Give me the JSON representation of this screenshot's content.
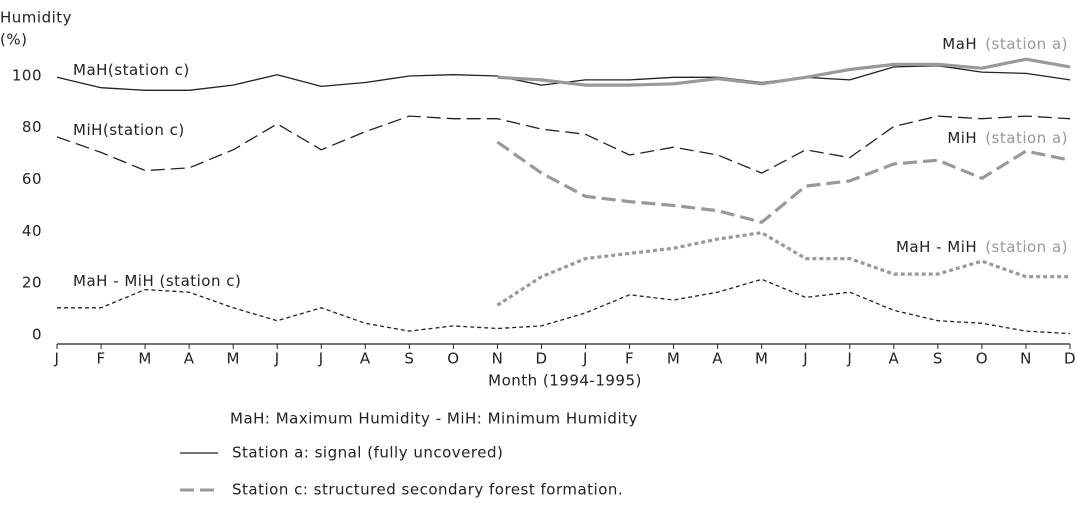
{
  "chart_data": {
    "type": "line",
    "y_label": [
      "Humidity",
      "(%)"
    ],
    "x_label": "Month (1994-1995)",
    "categories": [
      "J",
      "F",
      "M",
      "A",
      "M",
      "J",
      "J",
      "A",
      "S",
      "O",
      "N",
      "D",
      "J",
      "F",
      "M",
      "A",
      "M",
      "J",
      "J",
      "A",
      "S",
      "O",
      "N",
      "D"
    ],
    "ylim": [
      -2,
      110
    ],
    "yticks": [
      0,
      20,
      40,
      60,
      80,
      100
    ],
    "series": [
      {
        "label": "MaH(station c)",
        "color": "#222222",
        "style": "solid",
        "values": [
          101,
          97,
          96,
          96,
          98,
          102,
          97.5,
          99,
          101.5,
          102,
          101.5,
          98,
          100,
          100,
          101,
          101,
          99,
          101,
          100,
          105,
          105.5,
          103,
          102.5,
          100
        ]
      },
      {
        "label": "MiH(station c)",
        "color": "#222222",
        "style": "long-dash",
        "values": [
          78,
          72,
          65,
          66,
          73,
          83,
          73,
          80,
          86,
          85,
          85,
          81,
          79,
          71,
          74,
          71,
          64,
          73,
          70,
          82,
          86,
          85,
          86,
          85
        ]
      },
      {
        "label": "MaH - MiH (station c)",
        "color": "#222222",
        "style": "short-dash",
        "values": [
          12,
          12,
          19,
          18,
          12,
          7,
          12,
          6,
          3,
          5,
          4,
          5,
          10,
          17,
          15,
          18,
          23,
          16,
          18,
          11,
          7,
          6,
          3,
          2
        ]
      },
      {
        "label": "MaH",
        "label_note": "(station a)",
        "color": "#999999",
        "style": "solid",
        "values": [
          null,
          null,
          null,
          null,
          null,
          null,
          null,
          null,
          null,
          null,
          101,
          100,
          98,
          98,
          98.5,
          100.5,
          98.5,
          101,
          104,
          106,
          106,
          104.5,
          108,
          105
        ]
      },
      {
        "label": "MiH",
        "label_note": "(station a)",
        "color": "#999999",
        "style": "long-dash",
        "values": [
          null,
          null,
          null,
          null,
          null,
          null,
          null,
          null,
          null,
          null,
          76,
          64,
          55,
          53,
          51.5,
          49.5,
          45,
          59,
          61,
          67.5,
          69,
          62,
          72.5,
          69
        ]
      },
      {
        "label": "MaH - MiH",
        "label_note": "(station a)",
        "color": "#999999",
        "style": "short-dash",
        "values": [
          null,
          null,
          null,
          null,
          null,
          null,
          null,
          null,
          null,
          null,
          13,
          24,
          31,
          33,
          35,
          38.5,
          41,
          31,
          31,
          25,
          25,
          30,
          24,
          24
        ]
      }
    ],
    "note": "MaH: Maximum Humidity - MiH: Minimum Humidity",
    "legend": [
      {
        "text": "Station a: signal (fully uncovered)",
        "color": "#222222",
        "style": "solid"
      },
      {
        "text": "Station c: structured secondary forest formation.",
        "color": "#999999",
        "style": "long-dash"
      }
    ]
  }
}
